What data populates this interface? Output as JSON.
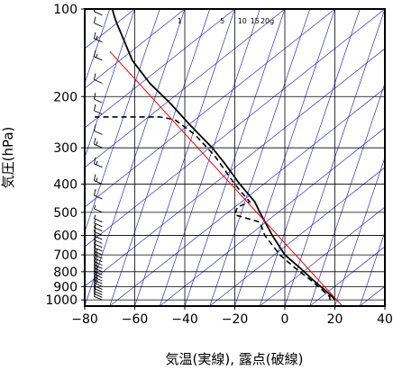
{
  "chart_data": {
    "type": "line",
    "title": "",
    "xlabel": "気温(実線), 露点(破線)",
    "ylabel": "気圧(hPa)",
    "x_ticks": [
      -80,
      -60,
      -40,
      -20,
      0,
      20,
      40
    ],
    "x_tick_labels": [
      "−80",
      "−60",
      "−40",
      "−20",
      "0",
      "20",
      "40"
    ],
    "y_ticks": [
      100,
      200,
      300,
      400,
      500,
      600,
      700,
      800,
      900,
      1000
    ],
    "xlim": [
      -80,
      40
    ],
    "ylim": [
      1050,
      100
    ],
    "y_scale": "log",
    "grid": true,
    "colors": {
      "temperature": "#000000",
      "dewpoint": "#000000",
      "reference": "#ff0000",
      "background_lines": "#3030d0",
      "wind": "#000000"
    },
    "mixing_ratio_labels": [
      "1",
      "5",
      "10",
      "15",
      "20g"
    ],
    "mixing_ratio_label_temps": [
      -42,
      -25,
      -17,
      -12,
      -7
    ],
    "series": [
      {
        "style": "solid",
        "points": [
          [
            20,
            1000
          ],
          [
            19,
            975
          ],
          [
            16,
            925
          ],
          [
            11,
            850
          ],
          [
            6,
            775
          ],
          [
            0,
            700
          ],
          [
            -5,
            600
          ],
          [
            -10,
            500
          ],
          [
            -12,
            460
          ],
          [
            -18,
            400
          ],
          [
            -24,
            340
          ],
          [
            -29,
            300
          ],
          [
            -38,
            250
          ],
          [
            -46,
            210
          ],
          [
            -54,
            180
          ],
          [
            -61,
            150
          ],
          [
            -64,
            130
          ],
          [
            -67,
            113
          ],
          [
            -68,
            107
          ],
          [
            -69,
            100
          ]
        ]
      },
      {
        "style": "dashed",
        "points": [
          [
            18,
            1000
          ],
          [
            18,
            975
          ],
          [
            15,
            925
          ],
          [
            10,
            850
          ],
          [
            4,
            775
          ],
          [
            -2,
            700
          ],
          [
            -8,
            600
          ],
          [
            -10,
            540
          ],
          [
            -20,
            510
          ],
          [
            -19,
            480
          ],
          [
            -14,
            460
          ],
          [
            -18,
            420
          ],
          [
            -20,
            400
          ],
          [
            -28,
            320
          ],
          [
            -36,
            270
          ],
          [
            -44,
            240
          ],
          [
            -50,
            235
          ],
          [
            -68,
            235
          ],
          [
            -76,
            235
          ]
        ]
      },
      {
        "style": "reference",
        "points": [
          [
            23,
            1050
          ],
          [
            -70,
            140
          ]
        ]
      }
    ],
    "wind_barbs": [
      {
        "p": 1000,
        "speed": 5
      },
      {
        "p": 980,
        "speed": 10
      },
      {
        "p": 960,
        "speed": 10
      },
      {
        "p": 940,
        "speed": 10
      },
      {
        "p": 920,
        "speed": 10
      },
      {
        "p": 900,
        "speed": 15
      },
      {
        "p": 880,
        "speed": 15
      },
      {
        "p": 860,
        "speed": 15
      },
      {
        "p": 840,
        "speed": 15
      },
      {
        "p": 820,
        "speed": 15
      },
      {
        "p": 800,
        "speed": 15
      },
      {
        "p": 780,
        "speed": 15
      },
      {
        "p": 760,
        "speed": 15
      },
      {
        "p": 740,
        "speed": 15
      },
      {
        "p": 720,
        "speed": 15
      },
      {
        "p": 700,
        "speed": 15
      },
      {
        "p": 680,
        "speed": 10
      },
      {
        "p": 660,
        "speed": 10
      },
      {
        "p": 640,
        "speed": 10
      },
      {
        "p": 620,
        "speed": 10
      },
      {
        "p": 600,
        "speed": 10
      },
      {
        "p": 580,
        "speed": 5
      },
      {
        "p": 560,
        "speed": 5
      },
      {
        "p": 540,
        "speed": 5
      },
      {
        "p": 500,
        "speed": 5
      },
      {
        "p": 450,
        "speed": 10
      },
      {
        "p": 400,
        "speed": 15
      },
      {
        "p": 350,
        "speed": 15
      },
      {
        "p": 300,
        "speed": 15
      },
      {
        "p": 270,
        "speed": 10
      },
      {
        "p": 230,
        "speed": 10
      },
      {
        "p": 210,
        "speed": 10
      },
      {
        "p": 180,
        "speed": 10
      },
      {
        "p": 150,
        "speed": 15
      },
      {
        "p": 130,
        "speed": 15
      },
      {
        "p": 115,
        "speed": 10
      },
      {
        "p": 105,
        "speed": 10
      },
      {
        "p": 100,
        "speed": 10
      }
    ]
  }
}
